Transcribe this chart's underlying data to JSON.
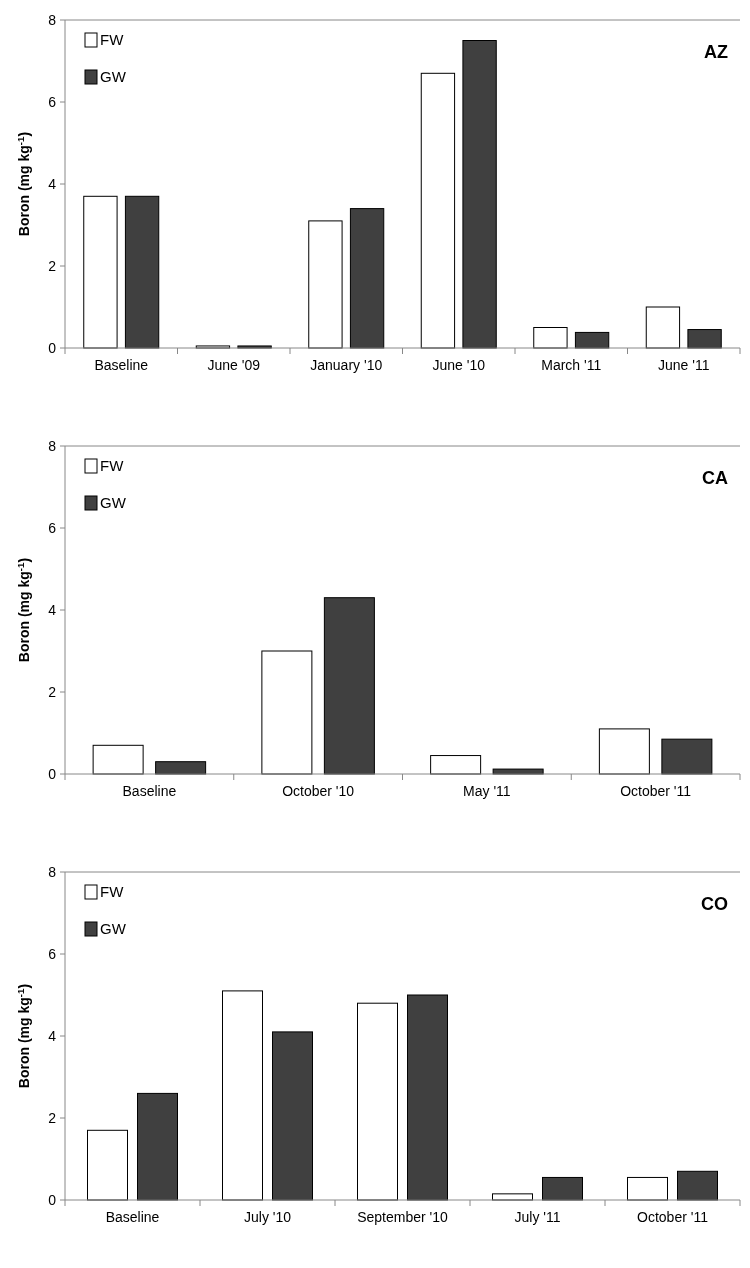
{
  "chart_data": [
    {
      "type": "bar",
      "title": "AZ",
      "ylabel": "Boron (mg kg$^{-1}$)",
      "categories": [
        "Baseline",
        "June '09",
        "January '10",
        "June '10",
        "March '11",
        "June '11"
      ],
      "series": [
        {
          "name": "FW",
          "color": "#ffffff",
          "values": [
            3.7,
            0.05,
            3.1,
            6.7,
            0.5,
            1.0
          ]
        },
        {
          "name": "GW",
          "color": "#404040",
          "values": [
            3.7,
            0.05,
            3.4,
            7.5,
            0.38,
            0.45
          ]
        }
      ],
      "ylim": [
        0,
        8
      ],
      "yticks": [
        0,
        2,
        4,
        6,
        8
      ],
      "legend": "top left",
      "grid": false
    },
    {
      "type": "bar",
      "title": "CA",
      "ylabel": "Boron (mg kg$^{-1}$)",
      "categories": [
        "Baseline",
        "October '10",
        "May '11",
        "October '11"
      ],
      "series": [
        {
          "name": "FW",
          "color": "#ffffff",
          "values": [
            0.7,
            3.0,
            0.45,
            1.1
          ]
        },
        {
          "name": "GW",
          "color": "#404040",
          "values": [
            0.3,
            4.3,
            0.12,
            0.85
          ]
        }
      ],
      "ylim": [
        0,
        8
      ],
      "yticks": [
        0,
        2,
        4,
        6,
        8
      ],
      "legend": "top left",
      "grid": false
    },
    {
      "type": "bar",
      "title": "CO",
      "ylabel": "Boron (mg kg$^{-1}$)",
      "categories": [
        "Baseline",
        "July '10",
        "September '10",
        "July '11",
        "October '11"
      ],
      "series": [
        {
          "name": "FW",
          "color": "#ffffff",
          "values": [
            1.7,
            5.1,
            4.8,
            0.15,
            0.55
          ]
        },
        {
          "name": "GW",
          "color": "#404040",
          "values": [
            2.6,
            4.1,
            5.0,
            0.55,
            0.7
          ]
        }
      ],
      "ylim": [
        0,
        8
      ],
      "yticks": [
        0,
        2,
        4,
        6,
        8
      ],
      "legend": "top left",
      "grid": false
    }
  ]
}
